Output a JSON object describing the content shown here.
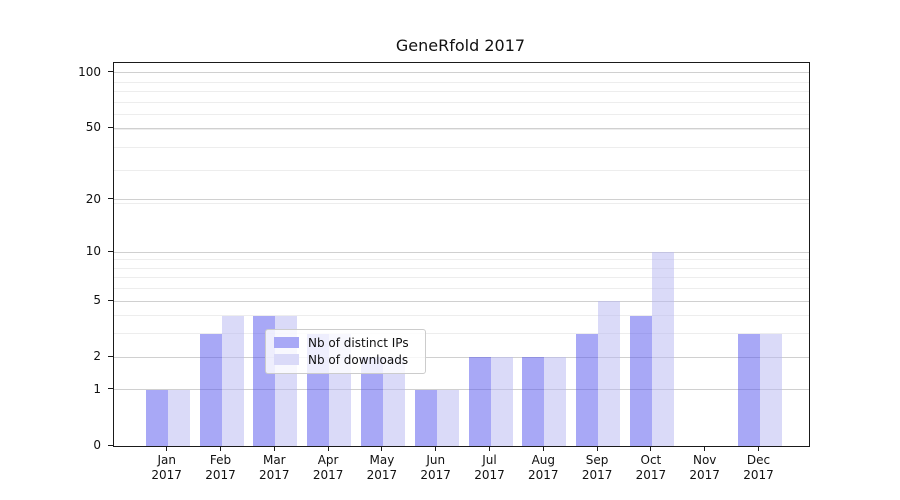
{
  "title": "GeneRfold 2017",
  "chart_data": {
    "type": "bar",
    "title": "GeneRfold 2017",
    "categories": [
      "Jan 2017",
      "Feb 2017",
      "Mar 2017",
      "Apr 2017",
      "May 2017",
      "Jun 2017",
      "Jul 2017",
      "Aug 2017",
      "Sep 2017",
      "Oct 2017",
      "Nov 2017",
      "Dec 2017"
    ],
    "series": [
      {
        "name": "Nb of distinct IPs",
        "values": [
          1,
          3,
          4,
          3,
          2,
          1,
          2,
          2,
          3,
          4,
          0,
          3
        ],
        "color": "#a8a8f6",
        "fill": "rgba(81,81,237,0.5)"
      },
      {
        "name": "Nb of downloads",
        "values": [
          1,
          4,
          4,
          3,
          2,
          1,
          2,
          2,
          5,
          10,
          0,
          3
        ],
        "color": "#dadaf8",
        "fill": "rgba(181,181,241,0.5)"
      }
    ],
    "xlabel": "",
    "ylabel": "",
    "y_axis": {
      "scale": "log10(1+v)",
      "range": [
        0,
        112
      ],
      "major_ticks": [
        0,
        1,
        2,
        5,
        10,
        20,
        50,
        100
      ],
      "minor_ticks": [
        3,
        4,
        6,
        7,
        8,
        9,
        19,
        29,
        39,
        49,
        59,
        69,
        79,
        89
      ]
    },
    "grid": true,
    "legend_position": "inside lower center"
  },
  "colors": {
    "bar_distinct_ips": "#a8a8f6",
    "bar_downloads": "#dadaf8",
    "grid_major": "#d0d0d0",
    "grid_minor": "#ededed",
    "axis_text": "#111111",
    "legend_border": "#cccccc"
  }
}
